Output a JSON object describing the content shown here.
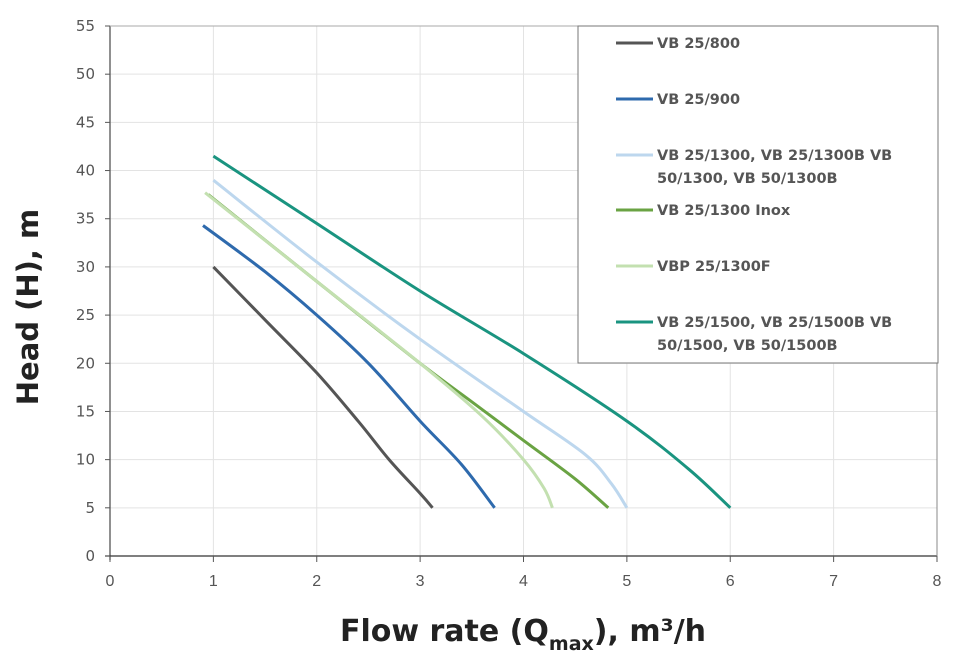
{
  "chart_data": {
    "type": "line",
    "title": "",
    "xlabel": "Flow rate (Q",
    "xlabel_sub": "max",
    "xlabel_tail": "), m³/h",
    "ylabel": "Head (H), m",
    "xlim": [
      0,
      8
    ],
    "ylim": [
      0,
      55
    ],
    "xticks": [
      "0",
      "1",
      "2",
      "3",
      "4",
      "5",
      "6",
      "7",
      "8"
    ],
    "yticks": [
      "0",
      "5",
      "10",
      "15",
      "20",
      "25",
      "30",
      "35",
      "40",
      "45",
      "50",
      "55"
    ],
    "grid": true,
    "legend_position": "top-right",
    "series": [
      {
        "name": "VB 25/800",
        "label_lines": [
          "VB 25/800"
        ],
        "color": "#555555",
        "x": [
          1.0,
          1.5,
          2.0,
          2.4,
          2.7,
          3.0,
          3.12
        ],
        "y": [
          30,
          24.5,
          19,
          14,
          10,
          6.5,
          5
        ]
      },
      {
        "name": "VB 25/900",
        "label_lines": [
          "VB 25/900"
        ],
        "color": "#2e6aad",
        "x": [
          0.9,
          1.5,
          2.0,
          2.5,
          3.0,
          3.4,
          3.72
        ],
        "y": [
          34.3,
          29.5,
          25,
          20,
          14,
          9.5,
          5
        ]
      },
      {
        "name": "VB 25/1300, VB 25/1300B  VB 50/1300, VB 50/1300B",
        "label_lines": [
          "VB 25/1300, VB 25/1300B  VB",
          "50/1300, VB 50/1300B"
        ],
        "color": "#bdd7ee",
        "x": [
          1.0,
          2.0,
          3.0,
          4.0,
          4.6,
          4.85,
          5.0
        ],
        "y": [
          39,
          30.5,
          22.5,
          15,
          10.5,
          7.5,
          5
        ]
      },
      {
        "name": "VB 25/1300 Inox",
        "label_lines": [
          "VB 25/1300 Inox"
        ],
        "color": "#6aa343",
        "x": [
          0.95,
          2.0,
          3.0,
          3.5,
          4.0,
          4.5,
          4.82
        ],
        "y": [
          37.5,
          28.5,
          20,
          16,
          12,
          8,
          5
        ]
      },
      {
        "name": "VBP 25/1300F",
        "label_lines": [
          "VBP 25/1300F"
        ],
        "color": "#c3e0b0",
        "x": [
          0.92,
          2.0,
          3.0,
          3.6,
          4.0,
          4.2,
          4.28
        ],
        "y": [
          37.7,
          28.5,
          20,
          14.5,
          10,
          7,
          5
        ]
      },
      {
        "name": "VB 25/1500, VB 25/1500B VB 50/1500, VB 50/1500B",
        "label_lines": [
          "VB 25/1500, VB 25/1500B VB",
          "50/1500, VB 50/1500B"
        ],
        "color": "#1a9480",
        "x": [
          1.0,
          2.0,
          3.0,
          4.0,
          5.0,
          5.6,
          6.0
        ],
        "y": [
          41.5,
          34.5,
          27.5,
          21,
          14,
          9,
          5
        ]
      }
    ]
  }
}
